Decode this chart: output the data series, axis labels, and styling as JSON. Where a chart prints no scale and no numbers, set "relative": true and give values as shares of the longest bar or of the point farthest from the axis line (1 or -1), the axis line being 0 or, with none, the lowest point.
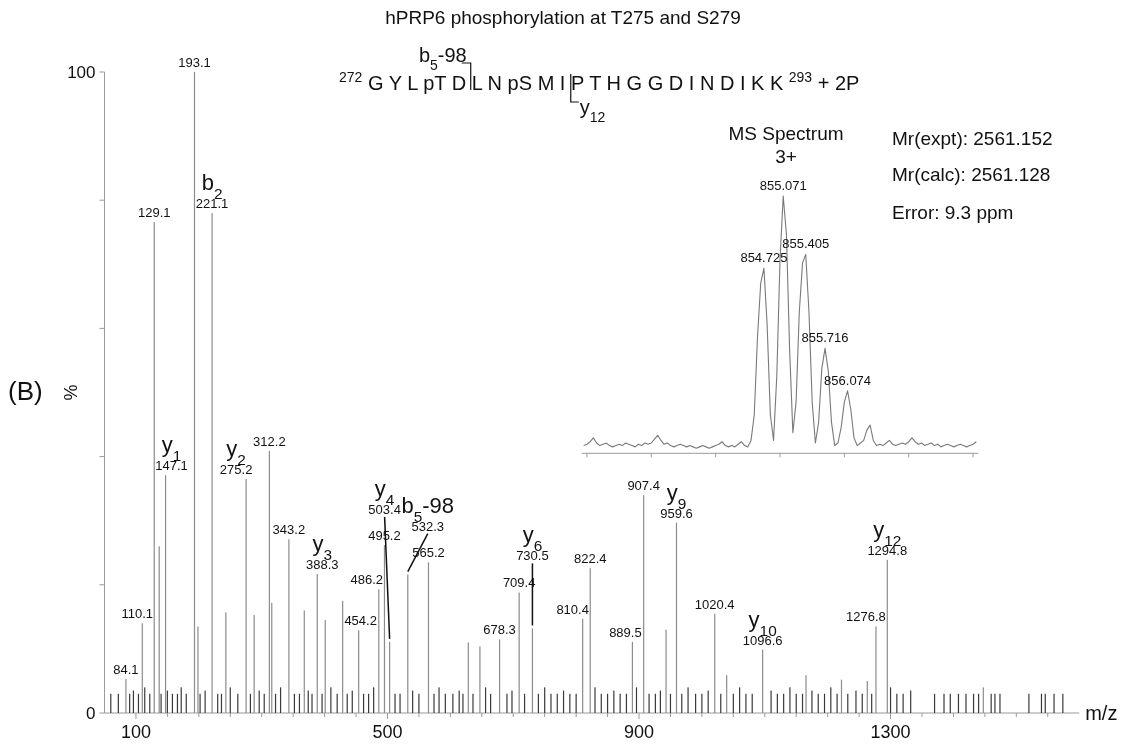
{
  "chart_data": [
    {
      "type": "bar",
      "title": "hPRP6 phosphorylation at T275 and S279",
      "xlabel": "m/z",
      "ylabel": "%",
      "annotations": [
        "(B)",
        "$^{272}$ G Y L pT D L N pS M I P T H G G D I N D I K K $^{293}$ + 2P",
        "b$_{5}$-98",
        "y$_{12}$",
        {
          "text": "84.1",
          "x": 84.1,
          "y": 5.3
        },
        {
          "text": "110.1",
          "x": 110.1,
          "y": 14
        },
        {
          "text": "129.1",
          "x": 129.1,
          "y": 76.6
        },
        {
          "text": "147.1",
          "x": 147.1,
          "y": 37.1
        },
        {
          "text": "y$_{1}$",
          "x": 147.1,
          "y": 37.1
        },
        {
          "text": "193.1",
          "x": 193.1,
          "y": 100
        },
        {
          "text": "221.1",
          "x": 221.1,
          "y": 78
        },
        {
          "text": "b$_{2}$",
          "x": 221.1,
          "y": 78
        },
        {
          "text": "275.2",
          "x": 275.2,
          "y": 36.5
        },
        {
          "text": "y$_{2}$",
          "x": 275.2,
          "y": 36.5
        },
        {
          "text": "312.2",
          "x": 312.2,
          "y": 40.9
        },
        {
          "text": "343.2",
          "x": 343.2,
          "y": 27.1
        },
        {
          "text": "388.3",
          "x": 388.3,
          "y": 21.7
        },
        {
          "text": "y$_{3}$",
          "x": 388.3,
          "y": 21.7
        },
        {
          "text": "454.2",
          "x": 454.2,
          "y": 12.9
        },
        {
          "text": "486.2",
          "x": 486.2,
          "y": 19.3
        },
        {
          "text": "495.2",
          "x": 495.2,
          "y": 26.2
        },
        {
          "text": "503.4",
          "x": 503.4,
          "y": 11.1
        },
        {
          "text": "y$_{4}$",
          "x": 503.4,
          "y": 11.1
        },
        {
          "text": "532.3",
          "x": 532.3,
          "y": 21.6
        },
        {
          "text": "b$_{5}$-98",
          "x": 532.3,
          "y": 21.6
        },
        {
          "text": "565.2",
          "x": 565.2,
          "y": 23.5
        },
        {
          "text": "678.3",
          "x": 678.3,
          "y": 11.5
        },
        {
          "text": "709.4",
          "x": 709.4,
          "y": 18.8
        },
        {
          "text": "730.5",
          "x": 730.5,
          "y": 13.2
        },
        {
          "text": "y$_{6}$",
          "x": 730.5,
          "y": 13.2
        },
        {
          "text": "810.4",
          "x": 810.4,
          "y": 14.7
        },
        {
          "text": "822.4",
          "x": 822.4,
          "y": 22.6
        },
        {
          "text": "889.5",
          "x": 889.5,
          "y": 11.1
        },
        {
          "text": "907.4",
          "x": 907.4,
          "y": 34
        },
        {
          "text": "959.6",
          "x": 959.6,
          "y": 29.7
        },
        {
          "text": "y$_{9}$",
          "x": 959.6,
          "y": 29.7
        },
        {
          "text": "1020.4",
          "x": 1020.4,
          "y": 15.5
        },
        {
          "text": "1096.6",
          "x": 1096.6,
          "y": 9.9
        },
        {
          "text": "y$_{10}$",
          "x": 1096.6,
          "y": 9.9
        },
        {
          "text": "1276.8",
          "x": 1276.8,
          "y": 13.5
        },
        {
          "text": "1294.8",
          "x": 1294.8,
          "y": 23.9
        },
        {
          "text": "y$_{12}$",
          "x": 1294.8,
          "y": 23.9
        }
      ],
      "xlim": [
        50,
        1600
      ],
      "xticks": [
        100,
        {
          "value": 150,
          "label": null
        },
        {
          "value": 200,
          "label": null
        },
        {
          "value": 250,
          "label": null
        },
        {
          "value": 300,
          "label": null
        },
        {
          "value": 350,
          "label": null
        },
        {
          "value": 400,
          "label": null
        },
        {
          "value": 450,
          "label": null
        },
        500,
        {
          "value": 550,
          "label": null
        },
        {
          "value": 600,
          "label": null
        },
        {
          "value": 650,
          "label": null
        },
        {
          "value": 700,
          "label": null
        },
        {
          "value": 750,
          "label": null
        },
        {
          "value": 800,
          "label": null
        },
        {
          "value": 850,
          "label": null
        },
        900,
        {
          "value": 950,
          "label": null
        },
        {
          "value": 1000,
          "label": null
        },
        {
          "value": 1050,
          "label": null
        },
        {
          "value": 1100,
          "label": null
        },
        {
          "value": 1150,
          "label": null
        },
        {
          "value": 1200,
          "label": null
        },
        {
          "value": 1250,
          "label": null
        },
        1300,
        {
          "value": 1350,
          "label": null
        },
        {
          "value": 1400,
          "label": null
        },
        {
          "value": 1450,
          "label": null
        },
        {
          "value": 1500,
          "label": null
        },
        {
          "value": 1550,
          "label": null
        }
      ],
      "ylim": [
        0,
        100
      ],
      "yticks": [
        0,
        {
          "value": 20,
          "label": null
        },
        {
          "value": 40,
          "label": null
        },
        {
          "value": 60,
          "label": null
        },
        {
          "value": 80,
          "label": null
        },
        100
      ],
      "series": [
        {
          "color": "#8c8c8c",
          "x": [
            84.1,
            110.1,
            129.1,
            137,
            147.1,
            193.1,
            198.6,
            221.1,
            243,
            275.2,
            288,
            312.2,
            316,
            343.2,
            367.7,
            388.3,
            401,
            428.7,
            454.2,
            486.2,
            495.2,
            503.4,
            532.3,
            565.2,
            628.5,
            647,
            678.3,
            709.4,
            730.5,
            810.4,
            822.4,
            889.5,
            907.4,
            943,
            959.6,
            1020.4,
            1039.4,
            1096.6,
            1165.6,
            1222,
            1263,
            1276.8,
            1294.8,
            1447.5
          ],
          "values": [
            5.3,
            14,
            76.6,
            26,
            37.1,
            100,
            13.5,
            78,
            15.7,
            36.5,
            15.3,
            40.9,
            17.2,
            27.1,
            16,
            21.7,
            14.5,
            17.5,
            12.9,
            19.3,
            26.2,
            11.1,
            21.6,
            23.5,
            11,
            10.4,
            11.5,
            18.8,
            13.2,
            14.7,
            22.6,
            11.1,
            34,
            13,
            29.7,
            15.5,
            5.9,
            9.9,
            5.9,
            5.2,
            5,
            13.5,
            23.9,
            4
          ]
        },
        {
          "color": "#3a3a3a",
          "x": [
            60,
            72,
            90,
            96,
            104,
            114,
            122,
            140,
            150,
            158,
            166,
            172,
            180,
            202,
            210,
            230,
            236,
            250,
            262,
            282,
            296,
            304,
            322,
            330,
            352,
            360,
            374,
            380,
            396,
            410,
            420,
            436,
            444,
            462,
            470,
            478,
            512,
            520,
            540,
            550,
            574,
            582,
            592,
            604,
            614,
            620,
            636,
            656,
            664,
            690,
            698,
            718,
            740,
            750,
            760,
            770,
            780,
            790,
            800,
            830,
            840,
            850,
            860,
            870,
            880,
            896,
            916,
            926,
            934,
            950,
            968,
            978,
            990,
            1000,
            1010,
            1030,
            1050,
            1060,
            1070,
            1080,
            1110,
            1120,
            1130,
            1140,
            1150,
            1160,
            1175,
            1185,
            1195,
            1205,
            1215,
            1232,
            1245,
            1255,
            1270,
            1300,
            1310,
            1320,
            1332,
            1370,
            1385,
            1395,
            1408,
            1420,
            1432,
            1440,
            1460,
            1466,
            1474,
            1520,
            1540,
            1546,
            1560,
            1574
          ],
          "values": [
            3,
            3,
            3,
            3.5,
            3,
            4,
            3,
            3,
            3.5,
            3,
            3,
            4,
            3,
            3,
            3.5,
            3,
            3,
            4,
            3,
            3,
            3.5,
            3,
            3,
            4,
            3,
            3,
            3.5,
            3,
            3,
            4,
            3,
            3,
            3.5,
            3,
            3,
            4,
            3,
            3,
            3.5,
            3,
            3,
            4,
            3,
            3,
            3.5,
            3,
            3,
            4,
            3,
            3,
            3.5,
            3,
            3,
            4,
            3,
            3,
            3.5,
            3,
            3,
            4,
            3,
            3,
            3.5,
            3,
            3,
            4,
            3,
            3,
            3.5,
            3,
            3,
            4,
            3,
            3,
            3.5,
            3,
            3,
            4,
            3,
            3,
            3.5,
            3,
            3,
            4,
            3,
            3,
            3.5,
            3,
            3,
            4,
            3,
            3,
            3.5,
            3,
            3,
            4,
            3,
            3,
            3.5,
            3,
            3,
            3,
            3,
            3,
            3,
            3,
            3,
            3,
            3,
            3,
            3,
            3,
            3,
            3
          ]
        }
      ]
    },
    {
      "type": "line",
      "title": "MS Spectrum",
      "subtitle": "3+",
      "relative": true,
      "annotations": [
        "Mr(expt): 2561.152",
        "Mr(calc): 2561.128",
        "Error: 9.3 ppm",
        "854.725",
        "855.071",
        "855.405",
        "855.716",
        "856.074"
      ],
      "categories": [
        null,
        null,
        null,
        null,
        null,
        null,
        null,
        null,
        null,
        null,
        null,
        null,
        null,
        null,
        null,
        null,
        null,
        null,
        null,
        null,
        null,
        null,
        null,
        null,
        null,
        null,
        null,
        null,
        null,
        null,
        null,
        null,
        null,
        null,
        null,
        null,
        null,
        null,
        null,
        null,
        null,
        null,
        null,
        null,
        null,
        null,
        null,
        null,
        null,
        null,
        null,
        null,
        null,
        null,
        null,
        null,
        null,
        null,
        null,
        null,
        null,
        null,
        null,
        null,
        null,
        null,
        null,
        null,
        null,
        null,
        null,
        null,
        null,
        null,
        null,
        null,
        null,
        null,
        null,
        null,
        null,
        null,
        null,
        null,
        null,
        null,
        null,
        null,
        null,
        null,
        null,
        null,
        null,
        null,
        null,
        null,
        null,
        null,
        null,
        null,
        null,
        null,
        null,
        null,
        null,
        null,
        null,
        null,
        null,
        null,
        null,
        null,
        null,
        null,
        null,
        null,
        null,
        null,
        null,
        null,
        null,
        null,
        null
      ],
      "series": [
        {
          "color": "#7a7a7a",
          "values": [
            0.03,
            0.035,
            0.045,
            0.06,
            0.04,
            0.03,
            0.035,
            0.04,
            0.03,
            0.025,
            0.03,
            0.035,
            0.03,
            0.04,
            0.035,
            0.03,
            0.025,
            0.035,
            0.03,
            0.04,
            0.035,
            0.04,
            0.055,
            0.07,
            0.05,
            0.035,
            0.04,
            0.03,
            0.025,
            0.03,
            0.035,
            0.03,
            0.025,
            0.03,
            0.025,
            0.02,
            0.025,
            0.03,
            0.025,
            0.02,
            0.025,
            0.03,
            0.035,
            0.045,
            0.03,
            0.025,
            0.03,
            0.025,
            0.035,
            0.045,
            0.03,
            0.025,
            0.05,
            0.15,
            0.45,
            0.66,
            0.72,
            0.5,
            0.15,
            0.05,
            0.3,
            0.75,
            1,
            0.85,
            0.4,
            0.08,
            0.2,
            0.55,
            0.74,
            0.773,
            0.55,
            0.2,
            0.04,
            0.12,
            0.33,
            0.408,
            0.32,
            0.12,
            0.03,
            0.04,
            0.1,
            0.2,
            0.243,
            0.17,
            0.06,
            0.03,
            0.04,
            0.05,
            0.09,
            0.11,
            0.05,
            0.03,
            0.035,
            0.03,
            0.04,
            0.05,
            0.035,
            0.03,
            0.035,
            0.04,
            0.035,
            0.045,
            0.06,
            0.045,
            0.035,
            0.04,
            0.03,
            0.035,
            0.04,
            0.03,
            0.035,
            0.025,
            0.03,
            0.035,
            0.03,
            0.025,
            0.03,
            0.035,
            0.03,
            0.025,
            0.03,
            0.035,
            0.045
          ]
        }
      ]
    }
  ]
}
